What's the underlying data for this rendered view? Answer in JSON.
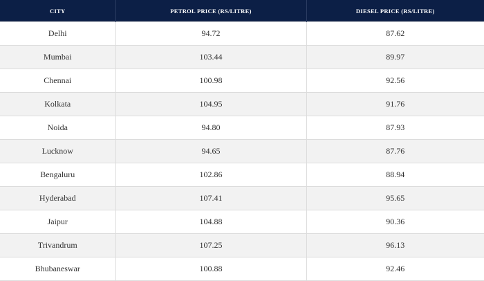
{
  "table": {
    "header": [
      "CITY",
      "PETROL PRICE (RS/LITRE)",
      "DIESEL PRICE (RS/LITRE)"
    ],
    "rows": [
      [
        "Delhi",
        "94.72",
        "87.62"
      ],
      [
        "Mumbai",
        "103.44",
        "89.97"
      ],
      [
        "Chennai",
        "100.98",
        "92.56"
      ],
      [
        "Kolkata",
        "104.95",
        "91.76"
      ],
      [
        "Noida",
        "94.80",
        "87.93"
      ],
      [
        "Lucknow",
        "94.65",
        "87.76"
      ],
      [
        "Bengaluru",
        "102.86",
        "88.94"
      ],
      [
        "Hyderabad",
        "107.41",
        "95.65"
      ],
      [
        "Jaipur",
        "104.88",
        "90.36"
      ],
      [
        "Trivandrum",
        "107.25",
        "96.13"
      ],
      [
        "Bhubaneswar",
        "100.88",
        "92.46"
      ]
    ]
  }
}
